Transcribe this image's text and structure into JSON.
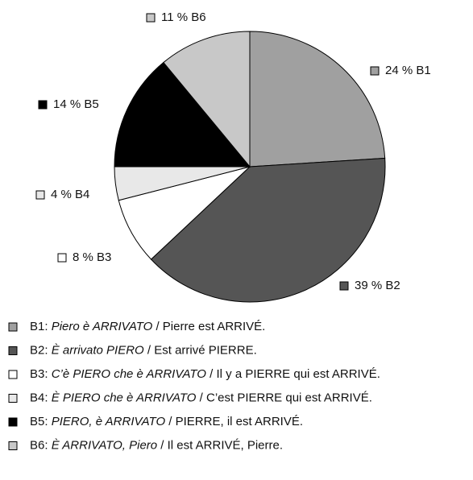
{
  "chart_data": {
    "type": "pie",
    "categories": [
      "B1",
      "B2",
      "B3",
      "B4",
      "B5",
      "B6"
    ],
    "values": [
      24,
      39,
      8,
      4,
      14,
      11
    ],
    "value_labels": [
      "24 % B1",
      "39 % B2",
      "8 % B3",
      "4 % B4",
      "14 % B5",
      "11 % B6"
    ],
    "colors": [
      "#a0a0a0",
      "#555555",
      "#ffffff",
      "#e8e8e8",
      "#000000",
      "#c8c8c8"
    ],
    "legend": [
      {
        "key": "B1:",
        "italian": "Piero è ARRIVATO",
        "french": "/ Pierre est ARRIVÉ."
      },
      {
        "key": "B2:",
        "italian": "È arrivato PIERO",
        "french": "/ Est arrivé PIERRE."
      },
      {
        "key": "B3:",
        "italian": "C’è PIERO che è ARRIVATO",
        "french": "/ Il y a PIERRE qui est ARRIVÉ."
      },
      {
        "key": "B4:",
        "italian": "È PIERO che è ARRIVATO",
        "french": "/ C’est PIERRE qui est ARRIVÉ."
      },
      {
        "key": "B5:",
        "italian": "PIERO, è ARRIVATO",
        "french": "/ PIERRE, il est ARRIVÉ."
      },
      {
        "key": "B6:",
        "italian": "È ARRIVATO, Piero",
        "french": "/ Il est ARRIVÉ, Pierre."
      }
    ]
  }
}
